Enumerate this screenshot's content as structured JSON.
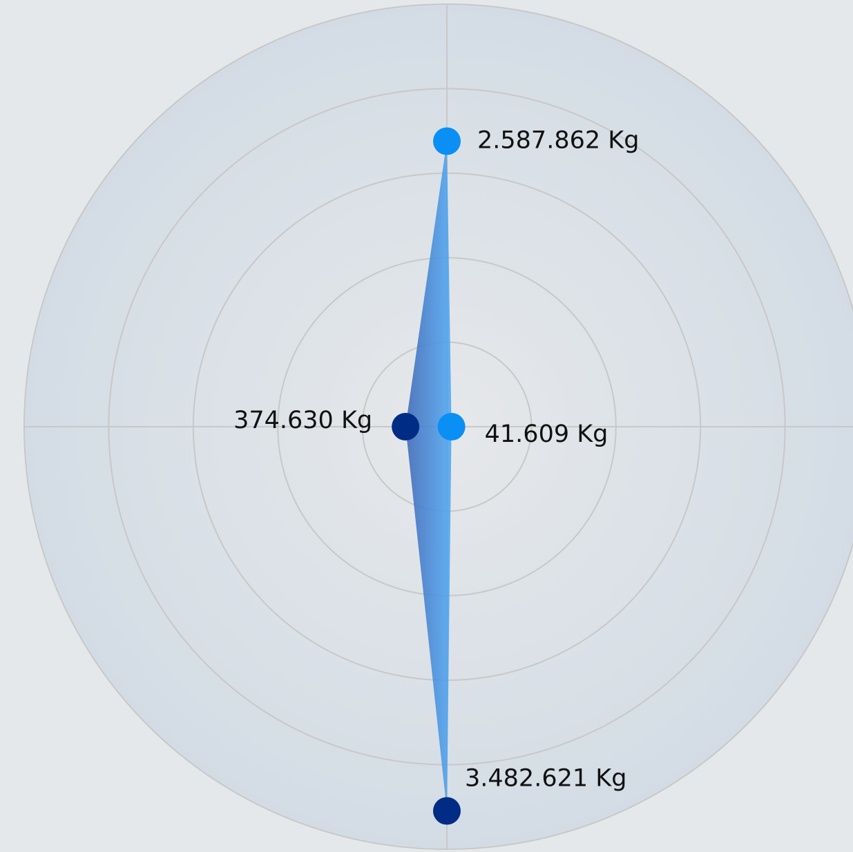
{
  "chart_data": {
    "type": "radar",
    "values": [
      2587862,
      41609,
      3482621,
      374630
    ],
    "value_labels": [
      "2.587.862 Kg",
      "41.609 Kg",
      "3.482.621 Kg",
      "374.630 Kg"
    ],
    "point_colors": [
      "#0a8ff5",
      "#0a8ff5",
      "#002c86",
      "#002c86"
    ],
    "rlim": [
      0,
      3830000
    ]
  }
}
